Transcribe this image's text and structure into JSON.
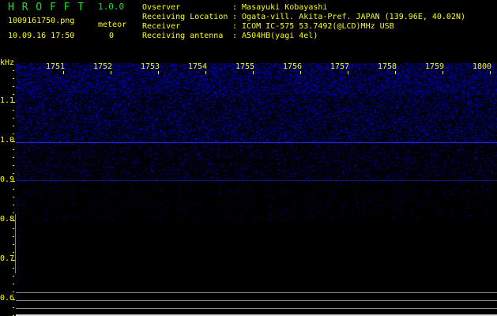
{
  "header": {
    "app_title": "H R O F F T",
    "version": "1.0.0",
    "filename": "1009161750.png",
    "datetime": "10.09.16 17:50",
    "meteor_label": "meteor",
    "meteor_count": "0"
  },
  "info": [
    {
      "label": "Ovserver",
      "value": ": Masayuki Kobayashi"
    },
    {
      "label": "Receiving Location",
      "value": ": Ogata-vill. Akita-Pref. JAPAN (139.96E, 40.02N)"
    },
    {
      "label": "Receiver",
      "value": ": ICOM IC-575 53.7492(@LCD)MHz USB"
    },
    {
      "label": "Receiving antenna",
      "value": ": A504HB(yagi 4el)"
    }
  ],
  "axis": {
    "freq_unit": "kHz",
    "freq_labels": [
      "1.1",
      "1.0",
      "0.9",
      "0.8",
      "0.7",
      "0.6"
    ],
    "time_labels": [
      "1751",
      "1752",
      "1753",
      "1754",
      "1755",
      "1756",
      "1757",
      "1758",
      "1759",
      "1800"
    ]
  },
  "colors": {
    "noise": "#2020c0",
    "text": "#ffff00",
    "title": "#22dd22"
  }
}
